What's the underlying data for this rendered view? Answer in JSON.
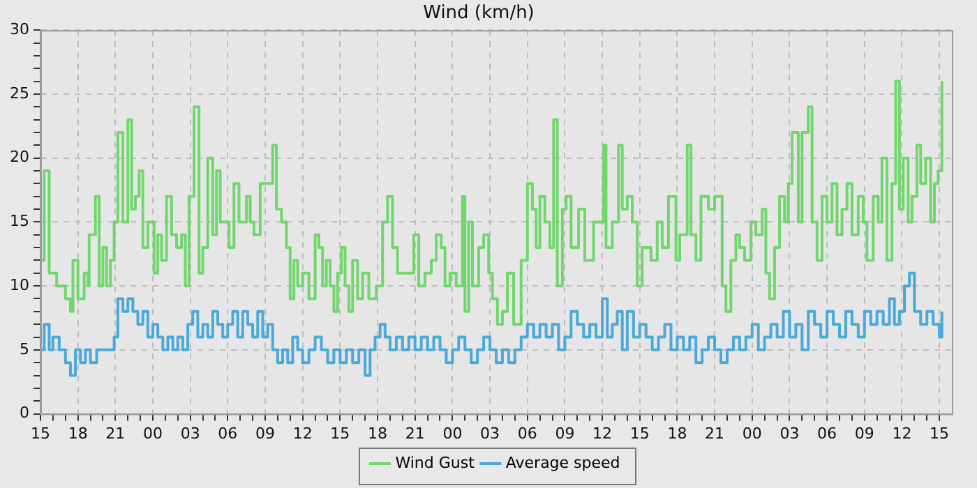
{
  "chart_data": {
    "type": "step",
    "title": "Wind (km/h)",
    "xlim": [
      15,
      88
    ],
    "xticks": [
      {
        "value": 15,
        "label": "15"
      },
      {
        "value": 16,
        "label": null
      },
      {
        "value": 17,
        "label": null
      },
      {
        "value": 18,
        "label": "18"
      },
      {
        "value": 19,
        "label": null
      },
      {
        "value": 20,
        "label": null
      },
      {
        "value": 21,
        "label": "21"
      },
      {
        "value": 22,
        "label": null
      },
      {
        "value": 23,
        "label": null
      },
      {
        "value": 24,
        "label": "00"
      },
      {
        "value": 25,
        "label": null
      },
      {
        "value": 26,
        "label": null
      },
      {
        "value": 27,
        "label": "03"
      },
      {
        "value": 28,
        "label": null
      },
      {
        "value": 29,
        "label": null
      },
      {
        "value": 30,
        "label": "06"
      },
      {
        "value": 31,
        "label": null
      },
      {
        "value": 32,
        "label": null
      },
      {
        "value": 33,
        "label": "09"
      },
      {
        "value": 34,
        "label": null
      },
      {
        "value": 35,
        "label": null
      },
      {
        "value": 36,
        "label": "12"
      },
      {
        "value": 37,
        "label": null
      },
      {
        "value": 38,
        "label": null
      },
      {
        "value": 39,
        "label": "15"
      },
      {
        "value": 40,
        "label": null
      },
      {
        "value": 41,
        "label": null
      },
      {
        "value": 42,
        "label": "18"
      },
      {
        "value": 43,
        "label": null
      },
      {
        "value": 44,
        "label": null
      },
      {
        "value": 45,
        "label": "21"
      },
      {
        "value": 46,
        "label": null
      },
      {
        "value": 47,
        "label": null
      },
      {
        "value": 48,
        "label": "00"
      },
      {
        "value": 49,
        "label": null
      },
      {
        "value": 50,
        "label": null
      },
      {
        "value": 51,
        "label": "03"
      },
      {
        "value": 52,
        "label": null
      },
      {
        "value": 53,
        "label": null
      },
      {
        "value": 54,
        "label": "06"
      },
      {
        "value": 55,
        "label": null
      },
      {
        "value": 56,
        "label": null
      },
      {
        "value": 57,
        "label": "09"
      },
      {
        "value": 58,
        "label": null
      },
      {
        "value": 59,
        "label": null
      },
      {
        "value": 60,
        "label": "12"
      },
      {
        "value": 61,
        "label": null
      },
      {
        "value": 62,
        "label": null
      },
      {
        "value": 63,
        "label": "15"
      },
      {
        "value": 64,
        "label": null
      },
      {
        "value": 65,
        "label": null
      },
      {
        "value": 66,
        "label": "18"
      },
      {
        "value": 67,
        "label": null
      },
      {
        "value": 68,
        "label": null
      },
      {
        "value": 69,
        "label": "21"
      },
      {
        "value": 70,
        "label": null
      },
      {
        "value": 71,
        "label": null
      },
      {
        "value": 72,
        "label": "00"
      },
      {
        "value": 73,
        "label": null
      },
      {
        "value": 74,
        "label": null
      },
      {
        "value": 75,
        "label": "03"
      },
      {
        "value": 76,
        "label": null
      },
      {
        "value": 77,
        "label": null
      },
      {
        "value": 78,
        "label": "06"
      },
      {
        "value": 79,
        "label": null
      },
      {
        "value": 80,
        "label": null
      },
      {
        "value": 81,
        "label": "09"
      },
      {
        "value": 82,
        "label": null
      },
      {
        "value": 83,
        "label": null
      },
      {
        "value": 84,
        "label": "12"
      },
      {
        "value": 85,
        "label": null
      },
      {
        "value": 86,
        "label": null
      },
      {
        "value": 87,
        "label": "15"
      }
    ],
    "ylim": [
      0,
      30
    ],
    "yticks": [
      0,
      {
        "value": 1,
        "label": null
      },
      {
        "value": 2,
        "label": null
      },
      {
        "value": 3,
        "label": null
      },
      {
        "value": 4,
        "label": null
      },
      5,
      {
        "value": 6,
        "label": null
      },
      {
        "value": 7,
        "label": null
      },
      {
        "value": 8,
        "label": null
      },
      {
        "value": 9,
        "label": null
      },
      10,
      {
        "value": 11,
        "label": null
      },
      {
        "value": 12,
        "label": null
      },
      {
        "value": 13,
        "label": null
      },
      {
        "value": 14,
        "label": null
      },
      15,
      {
        "value": 16,
        "label": null
      },
      {
        "value": 17,
        "label": null
      },
      {
        "value": 18,
        "label": null
      },
      {
        "value": 19,
        "label": null
      },
      20,
      {
        "value": 21,
        "label": null
      },
      {
        "value": 22,
        "label": null
      },
      {
        "value": 23,
        "label": null
      },
      {
        "value": 24,
        "label": null
      },
      25,
      {
        "value": 26,
        "label": null
      },
      {
        "value": 27,
        "label": null
      },
      {
        "value": 28,
        "label": null
      },
      {
        "value": 29,
        "label": null
      },
      30
    ],
    "grid": true,
    "legend": "bottom",
    "marker": "none",
    "line_style": "solid",
    "series": [
      {
        "name": "Wind Gust",
        "color": "#72d66e",
        "x": [
          15,
          15.3,
          15.7,
          16.3,
          17,
          17.4,
          17.6,
          18,
          18.5,
          18.8,
          18.9,
          19.4,
          19.7,
          20,
          20.3,
          20.6,
          20.9,
          21.2,
          21.6,
          22,
          22.3,
          22.6,
          22.9,
          23.2,
          23.6,
          24.1,
          24.4,
          24.7,
          25.1,
          25.5,
          25.9,
          26.3,
          26.6,
          26.9,
          27.3,
          27.7,
          28,
          28.4,
          28.8,
          29.1,
          29.4,
          29.7,
          30.1,
          30.5,
          30.9,
          31.5,
          31.8,
          32.1,
          32.6,
          33.2,
          33.6,
          33.9,
          34.3,
          34.7,
          35,
          35.3,
          35.6,
          36,
          36.5,
          37,
          37.3,
          37.6,
          37.9,
          38.2,
          38.5,
          38.8,
          39.1,
          39.4,
          39.7,
          40,
          40.4,
          40.8,
          41.3,
          41.9,
          42.4,
          42.8,
          43.2,
          43.6,
          44,
          44.9,
          45.3,
          45.8,
          46.3,
          46.7,
          47.1,
          47.4,
          47.8,
          48.3,
          48.8,
          49,
          49.3,
          49.6,
          50.1,
          50.5,
          50.9,
          51.2,
          51.6,
          52,
          52.4,
          52.9,
          53.5,
          54,
          54.4,
          54.7,
          55,
          55.4,
          55.8,
          56.1,
          56.4,
          56.8,
          57.1,
          57.5,
          58.1,
          58.6,
          59.3,
          59.8,
          60.1,
          60.3,
          60.8,
          61.3,
          61.6,
          62,
          62.4,
          62.8,
          63.2,
          63.9,
          64.4,
          64.8,
          65.3,
          65.9,
          66.2,
          66.8,
          67.1,
          67.5,
          67.9,
          68.5,
          69,
          69.6,
          69.9,
          70.3,
          70.7,
          71,
          71.4,
          71.9,
          72.3,
          72.8,
          73.1,
          73.4,
          73.8,
          74.2,
          74.6,
          74.9,
          75.2,
          75.7,
          76,
          76.5,
          76.8,
          77.2,
          77.6,
          78,
          78.4,
          78.8,
          79.2,
          79.6,
          80,
          80.5,
          80.9,
          81.2,
          81.7,
          82.1,
          82.4,
          82.8,
          83.2,
          83.5,
          83.8,
          84.1,
          84.5,
          84.8,
          85.2,
          85.5,
          85.9,
          86.3,
          86.6,
          86.9,
          87.2
        ],
        "values": [
          12,
          19,
          11,
          10,
          9,
          8,
          12,
          9,
          11,
          10,
          14,
          17,
          10,
          13,
          10,
          12,
          15,
          22,
          15,
          23,
          16,
          17,
          19,
          13,
          15,
          11,
          14,
          12,
          17,
          14,
          13,
          14,
          10,
          17,
          24,
          11,
          13,
          20,
          14,
          19,
          15,
          15,
          13,
          18,
          15,
          17,
          15,
          14,
          18,
          18,
          21,
          16,
          15,
          13,
          9,
          12,
          10,
          11,
          9,
          14,
          13,
          10,
          12,
          10,
          8,
          11,
          13,
          10,
          8,
          12,
          9,
          11,
          9,
          10,
          15,
          17,
          13,
          11,
          11,
          14,
          10,
          11,
          12,
          14,
          13,
          10,
          11,
          10,
          17,
          8,
          15,
          10,
          13,
          14,
          11,
          9,
          7,
          8,
          11,
          7,
          12,
          18,
          16,
          13,
          17,
          15,
          13,
          23,
          10,
          16,
          17,
          13,
          16,
          12,
          15,
          15,
          21,
          13,
          15,
          21,
          16,
          17,
          15,
          10,
          13,
          12,
          15,
          13,
          17,
          12,
          14,
          21,
          14,
          12,
          17,
          16,
          17,
          10,
          8,
          12,
          14,
          13,
          12,
          15,
          14,
          16,
          11,
          9,
          13,
          17,
          15,
          18,
          22,
          15,
          22,
          24,
          15,
          12,
          17,
          15,
          18,
          14,
          16,
          18,
          14,
          17,
          15,
          12,
          17,
          15,
          20,
          12,
          18,
          26,
          16,
          20,
          15,
          17,
          21,
          18,
          20,
          15,
          18,
          19,
          26
        ]
      },
      {
        "name": "Average speed",
        "color": "#4aa9d9",
        "x": [
          15,
          15.3,
          15.7,
          16,
          16.5,
          17,
          17.4,
          17.8,
          18.2,
          18.6,
          19,
          19.5,
          20,
          20.5,
          20.9,
          21.2,
          21.6,
          22,
          22.4,
          22.8,
          23.2,
          23.6,
          24,
          24.4,
          24.8,
          25.2,
          25.6,
          26,
          26.4,
          26.8,
          27.2,
          27.6,
          28,
          28.4,
          28.8,
          29.2,
          29.6,
          30,
          30.4,
          30.8,
          31.2,
          31.6,
          32,
          32.4,
          32.8,
          33.2,
          33.6,
          34,
          34.4,
          34.8,
          35.2,
          35.6,
          36,
          36.5,
          37,
          37.5,
          38,
          38.5,
          39,
          39.5,
          40,
          40.5,
          41,
          41.4,
          41.8,
          42.2,
          42.6,
          43,
          43.5,
          44,
          44.5,
          45,
          45.5,
          46,
          46.5,
          47,
          47.5,
          48,
          48.5,
          49,
          49.5,
          50,
          50.5,
          51,
          51.5,
          52,
          52.5,
          53,
          53.5,
          54,
          54.5,
          55,
          55.5,
          56,
          56.5,
          57,
          57.5,
          58,
          58.5,
          59,
          59.5,
          60,
          60.4,
          60.8,
          61.2,
          61.6,
          62,
          62.5,
          63,
          63.5,
          64,
          64.5,
          65,
          65.5,
          66,
          66.5,
          67,
          67.5,
          68,
          68.5,
          69,
          69.5,
          70,
          70.5,
          71,
          71.5,
          72,
          72.5,
          73,
          73.5,
          74,
          74.5,
          75,
          75.5,
          76,
          76.5,
          77,
          77.5,
          78,
          78.5,
          79,
          79.5,
          80,
          80.5,
          81,
          81.5,
          82,
          82.5,
          83,
          83.4,
          83.8,
          84.2,
          84.6,
          85,
          85.5,
          86,
          86.5,
          87,
          87.2
        ],
        "values": [
          5,
          7,
          5,
          6,
          5,
          4,
          3,
          5,
          4,
          5,
          4,
          5,
          5,
          5,
          6,
          9,
          8,
          9,
          8,
          7,
          8,
          6,
          7,
          6,
          5,
          6,
          5,
          6,
          5,
          7,
          8,
          6,
          7,
          6,
          8,
          7,
          6,
          7,
          8,
          6,
          8,
          7,
          6,
          8,
          6,
          7,
          5,
          4,
          5,
          4,
          6,
          5,
          4,
          5,
          6,
          5,
          4,
          5,
          4,
          5,
          4,
          5,
          3,
          5,
          6,
          7,
          6,
          5,
          6,
          5,
          6,
          5,
          6,
          5,
          6,
          5,
          4,
          5,
          6,
          5,
          4,
          5,
          6,
          5,
          4,
          5,
          4,
          5,
          6,
          7,
          6,
          7,
          6,
          7,
          5,
          6,
          8,
          7,
          6,
          7,
          6,
          9,
          6,
          7,
          8,
          5,
          8,
          6,
          7,
          6,
          5,
          6,
          7,
          5,
          6,
          5,
          6,
          4,
          5,
          6,
          5,
          4,
          5,
          6,
          5,
          6,
          7,
          5,
          6,
          7,
          6,
          8,
          6,
          7,
          5,
          8,
          7,
          6,
          8,
          7,
          6,
          8,
          7,
          6,
          8,
          7,
          8,
          7,
          9,
          7,
          8,
          10,
          11,
          8,
          7,
          8,
          7,
          6,
          8
        ]
      }
    ]
  }
}
